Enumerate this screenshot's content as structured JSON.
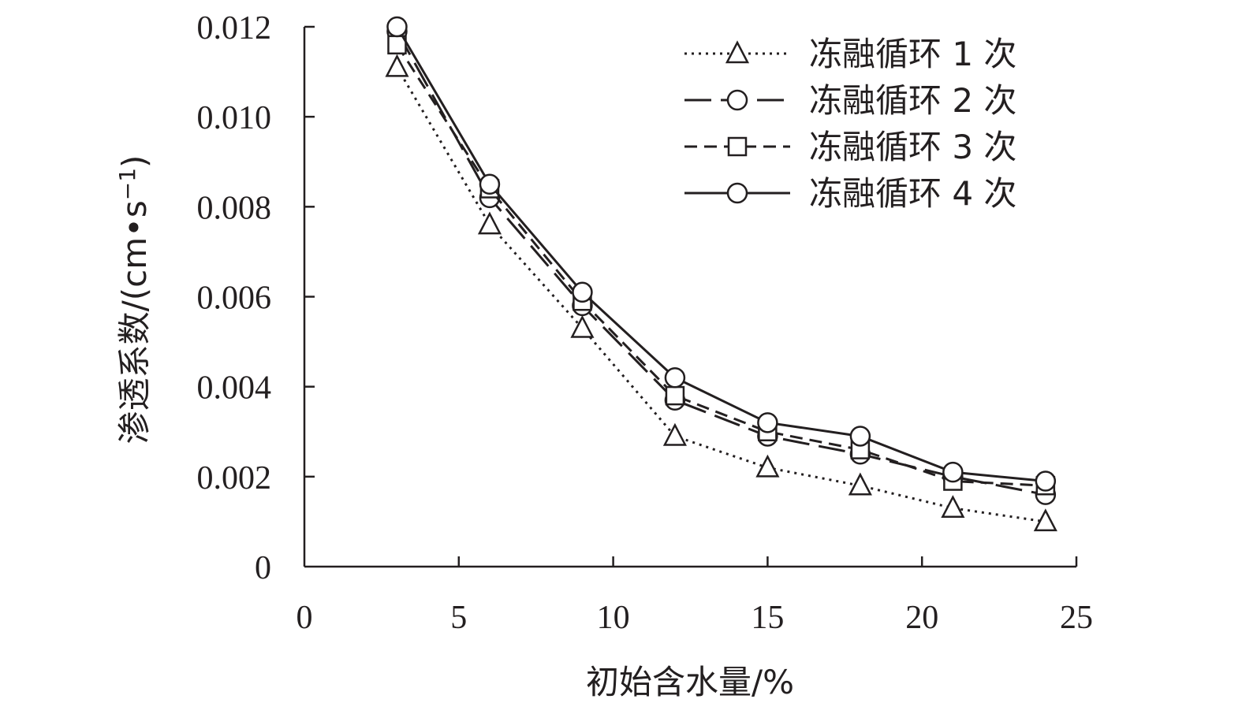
{
  "chart_data": {
    "type": "line",
    "xlabel": "初始含水量/%",
    "ylabel_main": "渗透系数/(cm",
    "ylabel_dot": "•",
    "ylabel_s": "s",
    "ylabel_exp": "−1",
    "ylabel_close": ")",
    "xlim": [
      0,
      25
    ],
    "ylim": [
      0,
      0.012
    ],
    "x_ticks": [
      "0",
      "5",
      "10",
      "15",
      "20",
      "25"
    ],
    "y_ticks": [
      "0",
      "0.002",
      "0.004",
      "0.006",
      "0.008",
      "0.010",
      "0.012"
    ],
    "x": [
      3,
      6,
      9,
      12,
      15,
      18,
      21,
      24
    ],
    "series": [
      {
        "name": "冻融循环 1 次",
        "line": "dotted",
        "marker": "triangle",
        "values": [
          0.0111,
          0.0076,
          0.0053,
          0.0029,
          0.0022,
          0.0018,
          0.0013,
          0.001
        ]
      },
      {
        "name": "冻融循环 2 次",
        "line": "long-dash",
        "marker": "circle",
        "values": [
          0.0119,
          0.0082,
          0.0058,
          0.0037,
          0.0029,
          0.0025,
          0.002,
          0.0016
        ]
      },
      {
        "name": "冻融循环 3 次",
        "line": "dashed",
        "marker": "square",
        "values": [
          0.0116,
          0.0084,
          0.0059,
          0.0038,
          0.003,
          0.0026,
          0.0019,
          0.0018
        ]
      },
      {
        "name": "冻融循环 4 次",
        "line": "solid",
        "marker": "circle",
        "values": [
          0.012,
          0.0085,
          0.0061,
          0.0042,
          0.0032,
          0.0029,
          0.0021,
          0.0019
        ]
      }
    ],
    "legend_position": "top-right",
    "grid": false
  }
}
